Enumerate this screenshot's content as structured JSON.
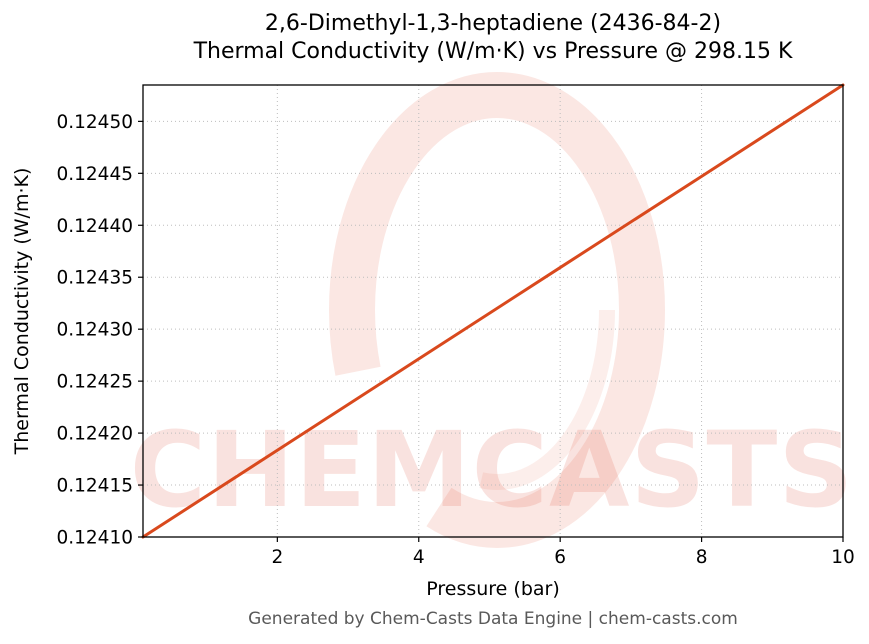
{
  "watermark": {
    "text": "CHEMCASTS",
    "color": "#e0543c"
  },
  "footer": {
    "text": "Generated by Chem-Casts Data Engine | chem-casts.com"
  },
  "chart_data": {
    "type": "line",
    "title_line1": "2,6-Dimethyl-1,3-heptadiene (2436-84-2)",
    "title_line2": "Thermal Conductivity (W/m·K) vs Pressure @ 298.15 K",
    "xlabel": "Pressure (bar)",
    "ylabel": "Thermal Conductivity (W/m·K)",
    "xlim": [
      0.1,
      10.0
    ],
    "ylim": [
      0.1241,
      0.124535
    ],
    "xticks": [
      2,
      4,
      6,
      8,
      10
    ],
    "yticks": [
      0.1241,
      0.12415,
      0.1242,
      0.12425,
      0.1243,
      0.12435,
      0.1244,
      0.12445,
      0.1245
    ],
    "grid": "dotted",
    "legend": "none",
    "series": [
      {
        "name": "thermal_conductivity",
        "color": "#d9491d",
        "x": [
          0.1,
          2,
          4,
          6,
          8,
          10
        ],
        "y": [
          0.1241,
          0.1241835,
          0.1242714,
          0.1243593,
          0.1244471,
          0.124535
        ]
      }
    ],
    "condition": "@ 298.15 K"
  }
}
